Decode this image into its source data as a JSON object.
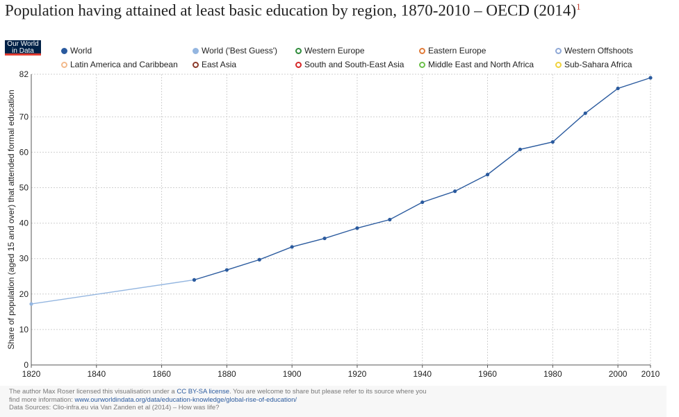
{
  "header": {
    "title": "Population having attained at least basic education by region, 1870-2010 – OECD (2014)",
    "title_note": "1",
    "logo_line1": "Our World",
    "logo_line2": "in Data"
  },
  "legend": [
    {
      "label": "World",
      "color": "#2a5a9e",
      "filled": true
    },
    {
      "label": "World ('Best Guess')",
      "color": "#94b6e0",
      "filled": true
    },
    {
      "label": "Western Europe",
      "color": "#2e8b3a",
      "filled": false
    },
    {
      "label": "Eastern Europe",
      "color": "#e07b39",
      "filled": false
    },
    {
      "label": "Western Offshoots",
      "color": "#8fa8d6",
      "filled": false
    },
    {
      "label": "Latin America and Caribbean",
      "color": "#f2b98b",
      "filled": false
    },
    {
      "label": "East Asia",
      "color": "#8b3a2a",
      "filled": false
    },
    {
      "label": "South and South-East Asia",
      "color": "#d62728",
      "filled": false
    },
    {
      "label": "Middle East and North Africa",
      "color": "#6cc04a",
      "filled": false
    },
    {
      "label": "Sub-Sahara Africa",
      "color": "#f0d23c",
      "filled": false
    }
  ],
  "chart_data": {
    "type": "line",
    "title": "Population having attained at least basic education by region, 1870-2010 – OECD (2014)",
    "ylabel": "Share of population (aged 15 and over) that attended formal education",
    "xlabel": "",
    "xlim": [
      1820,
      2010
    ],
    "ylim": [
      0,
      82
    ],
    "x_ticks": [
      1820,
      1840,
      1860,
      1880,
      1900,
      1920,
      1940,
      1960,
      1980,
      2000,
      2010
    ],
    "y_ticks": [
      0,
      10,
      20,
      30,
      40,
      50,
      60,
      70,
      82
    ],
    "grid": true,
    "legend_position": "top",
    "series": [
      {
        "name": "World ('Best Guess')",
        "color": "#94b6e0",
        "points": [
          [
            1820,
            17.2
          ],
          [
            1870,
            24.0
          ]
        ]
      },
      {
        "name": "World",
        "color": "#2a5a9e",
        "points": [
          [
            1870,
            24.0
          ],
          [
            1880,
            26.8
          ],
          [
            1890,
            29.7
          ],
          [
            1900,
            33.3
          ],
          [
            1910,
            35.7
          ],
          [
            1920,
            38.6
          ],
          [
            1930,
            41.0
          ],
          [
            1940,
            45.9
          ],
          [
            1950,
            49.0
          ],
          [
            1960,
            53.7
          ],
          [
            1970,
            60.8
          ],
          [
            1980,
            62.9
          ],
          [
            1990,
            71.0
          ],
          [
            2000,
            78.0
          ],
          [
            2010,
            81.0
          ]
        ]
      }
    ]
  },
  "footer": {
    "line1_a": "The author Max Roser licensed this visualisation under a ",
    "license_link": "CC BY-SA license",
    "line1_b": ". You are welcome to share but please refer to its source where you",
    "line2_a": "find more information: ",
    "source_link": "www.ourworldindata.org/data/education-knowledge/global-rise-of-education/",
    "line3": "Data Sources: Clio-infra.eu via Van Zanden et al (2014) – How was life?"
  }
}
